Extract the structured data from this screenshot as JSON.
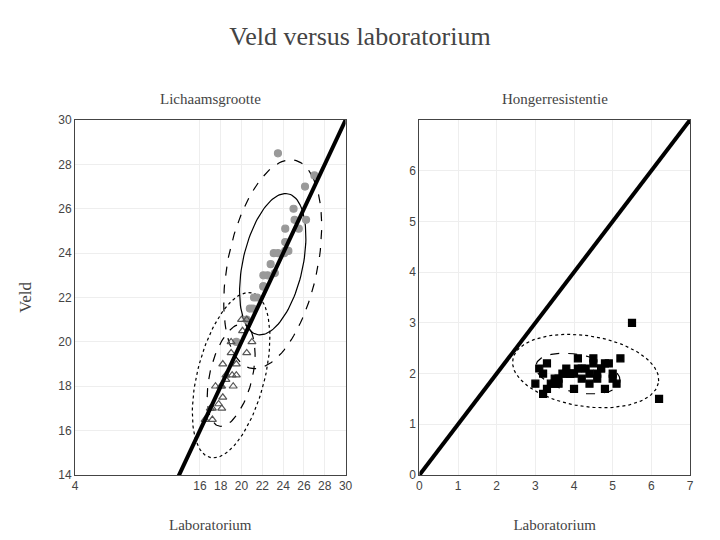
{
  "chart_data": {
    "type": "scatter",
    "title": "Veld versus laboratorium",
    "ylabel": "Veld",
    "grid": true,
    "subplots": [
      {
        "title": "Lichaamsgrootte",
        "xlabel": "Laboratorium",
        "xlim": [
          4,
          30
        ],
        "ylim": [
          14,
          30
        ],
        "xticks": [
          4,
          16,
          18,
          20,
          22,
          24,
          26,
          28,
          30
        ],
        "yticks": [
          14,
          16,
          18,
          20,
          22,
          24,
          26,
          28,
          30
        ],
        "series": [
          {
            "marker": "circle",
            "color": "#999999",
            "x": [
              23.5,
              21.5,
              24.2,
              25.0,
              26.1,
              27.0,
              24.5,
              26.2,
              25.5,
              24.1,
              23.2,
              22.1,
              21.2,
              22.5,
              23.1,
              24.2,
              21.1,
              20.5,
              22.1,
              23.5,
              25.1,
              24.2,
              22.1,
              20.8,
              19.5,
              22.8
            ],
            "y": [
              28.5,
              22.0,
              25.1,
              26.0,
              27.0,
              27.5,
              24.1,
              25.5,
              25.1,
              24.0,
              23.1,
              22.5,
              22.0,
              23.0,
              24.0,
              24.1,
              21.5,
              21.0,
              22.5,
              24.0,
              25.5,
              24.5,
              23.0,
              21.5,
              20.0,
              23.5
            ]
          },
          {
            "marker": "triangle-up-open",
            "color": "#555555",
            "x": [
              17.5,
              18.2,
              19.0,
              20.0,
              18.5,
              17.2,
              19.5,
              20.5,
              18.0,
              17.0,
              16.5,
              19.5,
              18.2,
              19.1,
              20.1,
              20.5,
              19.0,
              18.1,
              17.2,
              21.0,
              18.1,
              19.2,
              17.8,
              18.5
            ],
            "y": [
              18.0,
              19.0,
              20.0,
              21.0,
              18.5,
              17.0,
              18.5,
              19.5,
              18.0,
              17.0,
              16.5,
              19.0,
              17.5,
              18.5,
              20.5,
              21.0,
              19.5,
              18.0,
              16.5,
              20.0,
              17.0,
              18.0,
              17.2,
              18.3
            ]
          }
        ],
        "lines": [
          {
            "x": [
              4,
              30
            ],
            "y": [
              4,
              30
            ],
            "color": "#000000",
            "line_style": "solid"
          }
        ],
        "ellipses": [
          {
            "cx": 23.0,
            "cy": 23.5,
            "width": 11.0,
            "height": 7.5,
            "angle": 45,
            "line_style": "dashed",
            "color": "#000000"
          },
          {
            "cx": 23.0,
            "cy": 23.5,
            "width": 7.5,
            "height": 5.0,
            "angle": 45,
            "line_style": "solid",
            "color": "#000000"
          },
          {
            "cx": 19.0,
            "cy": 18.5,
            "width": 9.0,
            "height": 5.5,
            "angle": 45,
            "line_style": "dotted",
            "color": "#000000"
          },
          {
            "cx": 19.0,
            "cy": 18.5,
            "width": 5.5,
            "height": 3.5,
            "angle": 45,
            "line_style": "dashed",
            "color": "#000000"
          }
        ]
      },
      {
        "title": "Hongerresistentie",
        "xlabel": "Laboratorium",
        "xlim": [
          0,
          7
        ],
        "ylim": [
          0,
          7
        ],
        "xticks": [
          0,
          1,
          2,
          3,
          4,
          5,
          6,
          7
        ],
        "yticks": [
          0,
          1,
          2,
          3,
          4,
          5,
          6
        ],
        "series": [
          {
            "marker": "square",
            "color": "#000000",
            "x": [
              3.0,
              3.2,
              3.5,
              3.8,
              4.0,
              4.2,
              4.5,
              4.7,
              5.0,
              5.2,
              3.3,
              3.6,
              3.9,
              4.1,
              4.4,
              4.6,
              4.9,
              3.1,
              3.4,
              3.7,
              4.0,
              4.3,
              4.6,
              4.8,
              5.1,
              3.2,
              3.5,
              3.8,
              4.1,
              4.4,
              4.7,
              5.0,
              3.3,
              3.6,
              3.9,
              4.2,
              4.5,
              4.8,
              5.5,
              6.2
            ],
            "y": [
              1.8,
              2.0,
              1.9,
              2.1,
              2.0,
              1.9,
              2.2,
              2.1,
              2.0,
              2.3,
              1.7,
              1.9,
              2.0,
              2.1,
              1.8,
              2.0,
              2.2,
              2.1,
              1.8,
              2.0,
              1.7,
              2.1,
              1.9,
              2.2,
              1.8,
              1.6,
              1.8,
              2.0,
              2.3,
              2.0,
              2.1,
              1.9,
              2.2,
              1.8,
              2.0,
              2.1,
              2.3,
              1.7,
              3.0,
              1.5
            ]
          }
        ],
        "lines": [
          {
            "x": [
              0,
              7
            ],
            "y": [
              0,
              7
            ],
            "color": "#000000",
            "line_style": "solid"
          }
        ],
        "ellipses": [
          {
            "cx": 4.1,
            "cy": 2.0,
            "width": 2.2,
            "height": 0.75,
            "angle": -8,
            "line_style": "dashed",
            "color": "#000000"
          },
          {
            "cx": 4.3,
            "cy": 2.05,
            "width": 3.8,
            "height": 1.4,
            "angle": -6,
            "line_style": "dotted",
            "color": "#000000"
          }
        ]
      }
    ]
  }
}
